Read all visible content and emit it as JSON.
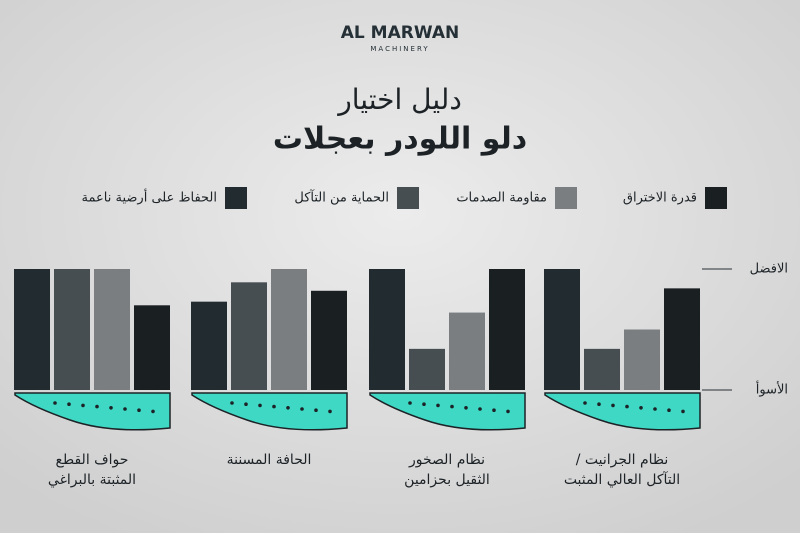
{
  "logo": {
    "name": "AL MARWAN",
    "tagline": "MACHINERY"
  },
  "chart_data": {
    "type": "bar",
    "title": "دليل اختيار",
    "subtitle": "دلو اللودر بعجلات",
    "categories": [
      [
        "نظام الجرانيت /",
        "التآكل العالي المثبت"
      ],
      [
        "نظام الصخور",
        "الثقيل بحزامين"
      ],
      [
        "الحافة المسننة"
      ],
      [
        "حواف القطع",
        "المثبتة بالبراغي"
      ]
    ],
    "series": [
      {
        "name": "قدرة الاختراق",
        "color": "#1a1f22",
        "values": [
          8.4,
          10,
          8.2,
          7
        ]
      },
      {
        "name": "مقاومة الصدمات",
        "color": "#7a7e80",
        "values": [
          5,
          6.4,
          10,
          10
        ]
      },
      {
        "name": "الحماية من التآكل",
        "color": "#464e52",
        "values": [
          3.4,
          3.4,
          8.9,
          10
        ]
      },
      {
        "name": "الحفاظ على أرضية ناعمة",
        "color": "#222b30",
        "values": [
          10,
          10,
          7.3,
          10
        ]
      }
    ],
    "ylim": [
      0,
      10
    ],
    "yticks": [
      {
        "value": 0,
        "label": "الأسوأ"
      },
      {
        "value": 10,
        "label": "الافضل"
      }
    ],
    "edge_color": "#3fd8c4"
  }
}
